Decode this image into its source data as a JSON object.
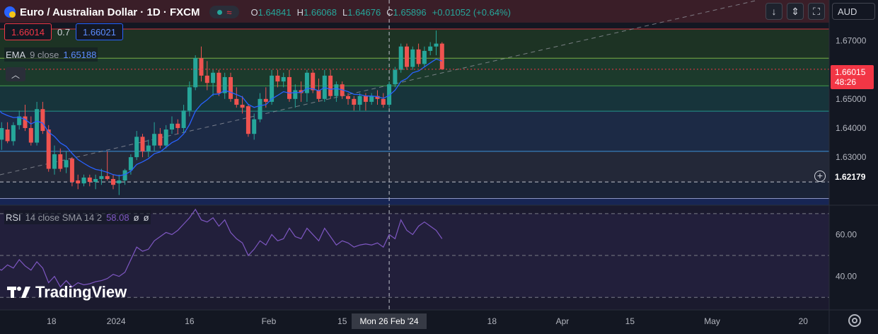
{
  "header": {
    "title": "Euro / Australian Dollar · 1D · FXCM",
    "ohlc": [
      {
        "k": "O",
        "v": "1.64841"
      },
      {
        "k": "H",
        "v": "1.66068"
      },
      {
        "k": "L",
        "v": "1.64676"
      },
      {
        "k": "C",
        "v": "1.65896"
      }
    ],
    "change": "+0.01052 (+0.64%)"
  },
  "trade": {
    "sell": "1.66014",
    "spread": "0.7",
    "buy": "1.66021"
  },
  "ema": {
    "name": "EMA",
    "params": "9 close",
    "value": "1.65188"
  },
  "rsi": {
    "name": "RSI",
    "params": "14 close SMA 14 2",
    "value": "58.08",
    "extra1": "ø",
    "extra2": "ø"
  },
  "toolbar": {
    "currency": "AUD"
  },
  "price_axis": {
    "ticks": [
      "1.67000",
      "1.66000",
      "1.65000",
      "1.64000",
      "1.63000"
    ],
    "last_price": "1.66015",
    "countdown": "48:26",
    "crosshair_price": "1.62179"
  },
  "rsi_axis": {
    "ticks": [
      "60.00",
      "40.00"
    ]
  },
  "time_axis": {
    "labels": [
      "18",
      "2024",
      "16",
      "Feb",
      "15",
      "18",
      "Apr",
      "15",
      "May",
      "20"
    ],
    "crosshair_date": "Mon 26 Feb '24"
  },
  "watermark": "TradingView",
  "colors": {
    "up": "#26a69a",
    "down": "#ef5350",
    "background": "#131722",
    "ema": "#2962ff",
    "rsi": "#7e57c2",
    "last_price": "#f23645"
  },
  "chart_data": [
    {
      "type": "candlestick",
      "title": "Euro / Australian Dollar · 1D · FXCM",
      "ylim": [
        1.6135,
        1.6762
      ],
      "x_start": "2023-12-07",
      "ohlc": [
        [
          1.6465,
          1.649,
          1.635,
          1.636
        ],
        [
          1.636,
          1.642,
          1.6325,
          1.64
        ],
        [
          1.6395,
          1.642,
          1.6348,
          1.6355
        ],
        [
          1.6355,
          1.642,
          1.634,
          1.641
        ],
        [
          1.641,
          1.646,
          1.6395,
          1.644
        ],
        [
          1.644,
          1.648,
          1.639,
          1.64
        ],
        [
          1.64,
          1.644,
          1.634,
          1.635
        ],
        [
          1.635,
          1.649,
          1.634,
          1.6465
        ],
        [
          1.6465,
          1.649,
          1.638,
          1.639
        ],
        [
          1.6395,
          1.641,
          1.625,
          1.626
        ],
        [
          1.626,
          1.634,
          1.624,
          1.631
        ],
        [
          1.631,
          1.633,
          1.625,
          1.626
        ],
        [
          1.6265,
          1.632,
          1.6245,
          1.629
        ],
        [
          1.6295,
          1.63,
          1.62,
          1.6215
        ],
        [
          1.622,
          1.624,
          1.619,
          1.621
        ],
        [
          1.621,
          1.624,
          1.62,
          1.623
        ],
        [
          1.623,
          1.624,
          1.62,
          1.6215
        ],
        [
          1.6215,
          1.624,
          1.619,
          1.6225
        ],
        [
          1.6225,
          1.626,
          1.6205,
          1.6235
        ],
        [
          1.6235,
          1.632,
          1.622,
          1.6225
        ],
        [
          1.6225,
          1.624,
          1.619,
          1.6205
        ],
        [
          1.621,
          1.624,
          1.617,
          1.622
        ],
        [
          1.622,
          1.626,
          1.6205,
          1.6255
        ],
        [
          1.6255,
          1.631,
          1.624,
          1.63
        ],
        [
          1.63,
          1.639,
          1.629,
          1.637
        ],
        [
          1.637,
          1.638,
          1.63,
          1.632
        ],
        [
          1.632,
          1.636,
          1.63,
          1.634
        ],
        [
          1.634,
          1.642,
          1.632,
          1.638
        ],
        [
          1.638,
          1.64,
          1.633,
          1.634
        ],
        [
          1.634,
          1.641,
          1.633,
          1.6395
        ],
        [
          1.6395,
          1.644,
          1.638,
          1.6415
        ],
        [
          1.6415,
          1.643,
          1.638,
          1.64
        ],
        [
          1.64,
          1.648,
          1.6385,
          1.646
        ],
        [
          1.646,
          1.656,
          1.644,
          1.654
        ],
        [
          1.654,
          1.665,
          1.653,
          1.664
        ],
        [
          1.664,
          1.668,
          1.656,
          1.658
        ],
        [
          1.658,
          1.663,
          1.653,
          1.6555
        ],
        [
          1.6555,
          1.66,
          1.651,
          1.659
        ],
        [
          1.659,
          1.66,
          1.651,
          1.652
        ],
        [
          1.652,
          1.659,
          1.65,
          1.6575
        ],
        [
          1.6575,
          1.659,
          1.649,
          1.65
        ],
        [
          1.65,
          1.654,
          1.647,
          1.648
        ],
        [
          1.648,
          1.651,
          1.645,
          1.647
        ],
        [
          1.6475,
          1.648,
          1.637,
          1.638
        ],
        [
          1.638,
          1.645,
          1.636,
          1.643
        ],
        [
          1.643,
          1.652,
          1.642,
          1.65
        ],
        [
          1.65,
          1.654,
          1.647,
          1.649
        ],
        [
          1.649,
          1.66,
          1.648,
          1.658
        ],
        [
          1.658,
          1.66,
          1.654,
          1.656
        ],
        [
          1.656,
          1.659,
          1.654,
          1.6575
        ],
        [
          1.6575,
          1.66,
          1.649,
          1.65
        ],
        [
          1.65,
          1.655,
          1.647,
          1.653
        ],
        [
          1.653,
          1.656,
          1.649,
          1.652
        ],
        [
          1.652,
          1.66,
          1.649,
          1.659
        ],
        [
          1.659,
          1.66,
          1.652,
          1.653
        ],
        [
          1.653,
          1.657,
          1.649,
          1.65
        ],
        [
          1.65,
          1.66,
          1.649,
          1.658
        ],
        [
          1.658,
          1.66,
          1.65,
          1.651
        ],
        [
          1.651,
          1.656,
          1.649,
          1.655
        ],
        [
          1.655,
          1.656,
          1.65,
          1.651
        ],
        [
          1.651,
          1.652,
          1.648,
          1.65
        ],
        [
          1.65,
          1.651,
          1.646,
          1.648
        ],
        [
          1.648,
          1.652,
          1.646,
          1.651
        ],
        [
          1.651,
          1.652,
          1.646,
          1.649
        ],
        [
          1.649,
          1.652,
          1.648,
          1.651
        ],
        [
          1.651,
          1.653,
          1.648,
          1.65
        ],
        [
          1.65,
          1.652,
          1.647,
          1.648
        ],
        [
          1.648,
          1.656,
          1.647,
          1.655
        ],
        [
          1.655,
          1.661,
          1.654,
          1.66
        ],
        [
          1.66,
          1.669,
          1.659,
          1.668
        ],
        [
          1.668,
          1.669,
          1.66,
          1.661
        ],
        [
          1.661,
          1.668,
          1.66,
          1.667
        ],
        [
          1.667,
          1.669,
          1.661,
          1.662
        ],
        [
          1.662,
          1.668,
          1.661,
          1.6665
        ],
        [
          1.6665,
          1.6695,
          1.665,
          1.668
        ],
        [
          1.668,
          1.6735,
          1.665,
          1.669
        ],
        [
          1.669,
          1.6695,
          1.66,
          1.6602
        ]
      ],
      "ema9": [
        1.6475,
        1.6452,
        1.6443,
        1.6436,
        1.6437,
        1.643,
        1.6414,
        1.6424,
        1.6417,
        1.6386,
        1.6371,
        1.6349,
        1.6337,
        1.6313,
        1.6292,
        1.6279,
        1.6267,
        1.6258,
        1.6254,
        1.6248,
        1.624,
        1.6236,
        1.624,
        1.6252,
        1.6275,
        1.6284,
        1.6295,
        1.6312,
        1.6318,
        1.6334,
        1.635,
        1.636,
        1.638,
        1.6412,
        1.6458,
        1.6482,
        1.6497,
        1.6516,
        1.6517,
        1.6529,
        1.6523,
        1.6515,
        1.6506,
        1.6481,
        1.6471,
        1.6477,
        1.648,
        1.65,
        1.6512,
        1.6525,
        1.652,
        1.6522,
        1.6522,
        1.6536,
        1.6535,
        1.6528,
        1.6539,
        1.6533,
        1.6536,
        1.6531,
        1.6525,
        1.6516,
        1.6515,
        1.651,
        1.651,
        1.6508,
        1.6502,
        1.6512,
        1.653,
        1.656,
        1.657,
        1.659,
        1.6596,
        1.661,
        1.6624,
        1.6637,
        1.663
      ],
      "horizontal_levels": [
        1.674,
        1.664,
        1.6545,
        1.6458,
        1.632,
        1.6215,
        1.6158
      ]
    },
    {
      "type": "line",
      "title": "RSI 14 close SMA 14 2",
      "ylim": [
        24,
        74
      ],
      "levels": [
        70,
        50,
        30
      ],
      "x_start": "2023-12-07",
      "values": [
        44.0,
        43.0,
        45.5,
        44.0,
        48.0,
        45.0,
        43.0,
        47.0,
        44.0,
        37.0,
        40.0,
        35.0,
        38.0,
        35.0,
        37.0,
        36.0,
        36.5,
        37.5,
        38.0,
        39.0,
        41.0,
        40.0,
        42.0,
        48.0,
        54.0,
        52.0,
        53.0,
        57.0,
        59.0,
        61.0,
        60.0,
        62.0,
        65.0,
        68.0,
        72.0,
        67.0,
        66.0,
        68.0,
        64.0,
        67.0,
        61.0,
        58.0,
        56.0,
        50.0,
        53.0,
        57.0,
        55.0,
        60.0,
        57.0,
        58.0,
        63.0,
        59.0,
        58.0,
        63.0,
        60.0,
        57.0,
        63.0,
        59.0,
        55.0,
        57.0,
        56.0,
        54.0,
        55.0,
        55.5,
        55.0,
        56.0,
        54.0,
        60.0,
        58.0,
        67.0,
        62.0,
        60.0,
        64.0,
        66.0,
        64.0,
        62.0,
        58.0
      ]
    }
  ]
}
